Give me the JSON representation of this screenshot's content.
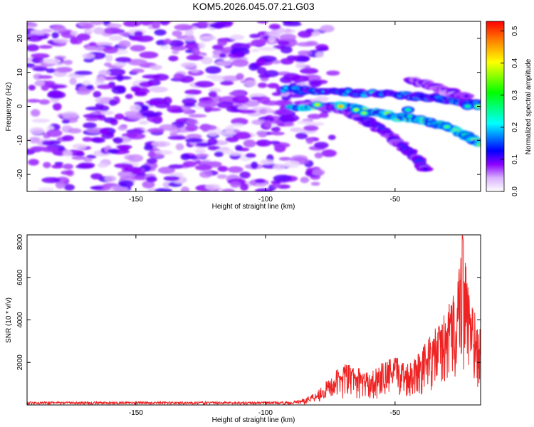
{
  "title": "KOM5.2026.045.07.21.G03",
  "chart_data": [
    {
      "type": "heatmap",
      "xlabel": "Height of straight line (km)",
      "ylabel": "Frequency (Hz)",
      "colorbar_label": "Normalized spectral amplitude",
      "xlim": [
        -192,
        -17
      ],
      "ylim": [
        -25,
        25
      ],
      "x_ticks": [
        -150,
        -100,
        -50
      ],
      "y_ticks": [
        -20,
        -10,
        0,
        10,
        20
      ],
      "colorbar_range": [
        0,
        0.53
      ],
      "colorbar_ticks": [
        0.0,
        0.1,
        0.2,
        0.3,
        0.4,
        0.5
      ],
      "colormap": [
        "#ffffff",
        "#8b00ff",
        "#0000ff",
        "#00ffff",
        "#00ff00",
        "#ffff00",
        "#ff0000"
      ],
      "ridges": [
        {
          "x": [
            -93,
            -80,
            -65,
            -50,
            -40,
            -30,
            -17
          ],
          "y": [
            5,
            4.5,
            4,
            3.5,
            3,
            2,
            0.5
          ],
          "amplitude": 0.2
        },
        {
          "x": [
            -90,
            -80,
            -70,
            -60,
            -50,
            -40,
            -30,
            -22,
            -17
          ],
          "y": [
            -0.5,
            0,
            0,
            -1.5,
            -3,
            -4,
            -6,
            -9,
            -11
          ],
          "amplitude": 0.35
        },
        {
          "x": [
            -80,
            -70,
            -62,
            -55,
            -48,
            -42,
            -38
          ],
          "y": [
            0,
            -1,
            -4,
            -7,
            -11,
            -15,
            -19
          ],
          "amplitude": 0.12
        },
        {
          "x": [
            -44,
            -36,
            -28,
            -22
          ],
          "y": [
            8,
            6,
            4,
            3
          ],
          "amplitude": 0.1
        }
      ],
      "peaks": [
        {
          "x": -71,
          "y": 0,
          "amplitude": 0.53
        },
        {
          "x": -80,
          "y": 0.5,
          "amplitude": 0.45
        },
        {
          "x": -65,
          "y": -1,
          "amplitude": 0.42
        },
        {
          "x": -62,
          "y": -2,
          "amplitude": 0.4
        },
        {
          "x": -30,
          "y": -6,
          "amplitude": 0.35
        },
        {
          "x": -18,
          "y": 0,
          "amplitude": 0.4
        },
        {
          "x": -22,
          "y": 0,
          "amplitude": 0.3
        },
        {
          "x": -45,
          "y": -1,
          "amplitude": 0.3
        }
      ],
      "background": {
        "x_range": [
          -192,
          -83
        ],
        "y_range": [
          -25,
          25
        ],
        "amplitude": 0.05
      }
    },
    {
      "type": "line",
      "xlabel": "Height of straight line (km)",
      "ylabel": "SNR (10 * v/v)",
      "xlim": [
        -192,
        -17
      ],
      "ylim": [
        0,
        8000
      ],
      "x_ticks": [
        -150,
        -100,
        -50
      ],
      "y_ticks": [
        2000,
        4000,
        6000,
        8000
      ],
      "color": "#ee2222",
      "envelope": {
        "x": [
          -192,
          -120,
          -90,
          -85,
          -80,
          -75,
          -70,
          -65,
          -60,
          -55,
          -50,
          -45,
          -40,
          -35,
          -30,
          -27,
          -24,
          -21,
          -17
        ],
        "y": [
          150,
          150,
          150,
          300,
          700,
          1300,
          2000,
          1800,
          1500,
          2000,
          2300,
          2000,
          2700,
          3500,
          4500,
          5500,
          8000,
          5000,
          3500
        ]
      }
    }
  ]
}
